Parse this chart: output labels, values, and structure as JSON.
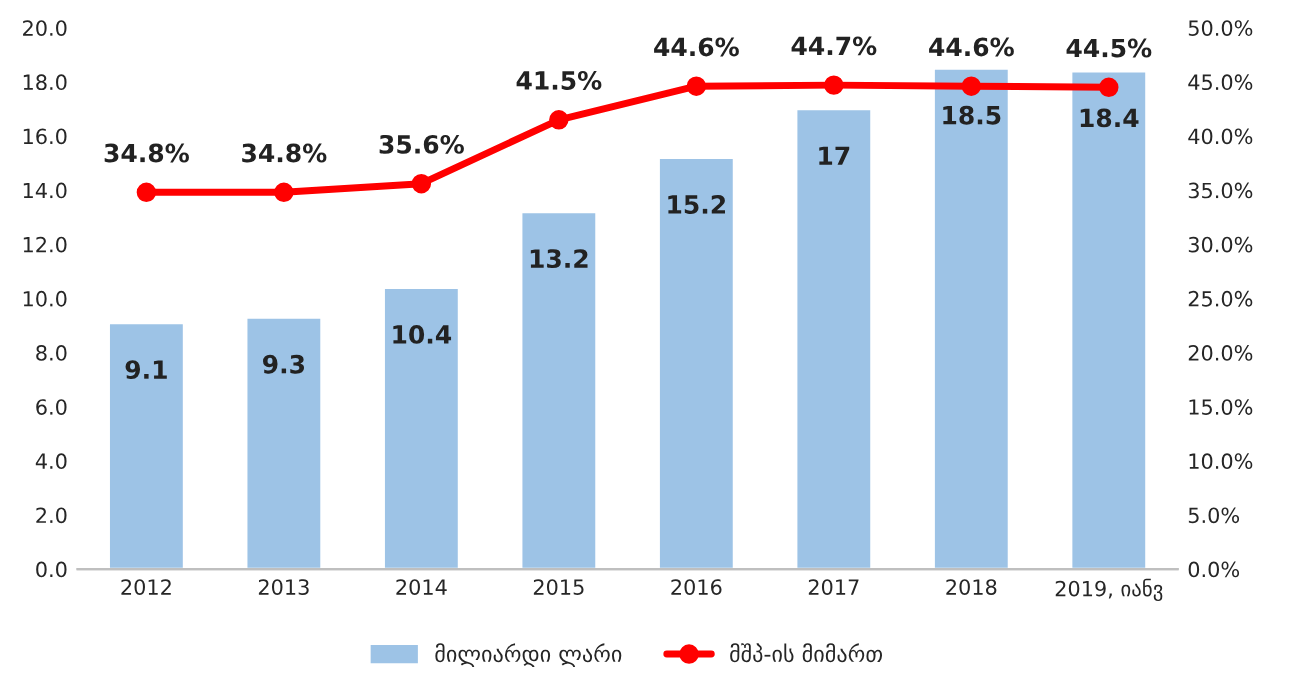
{
  "chart_data": {
    "type": "bar",
    "categories": [
      "2012",
      "2013",
      "2014",
      "2015",
      "2016",
      "2017",
      "2018",
      "2019, იანვ"
    ],
    "series": [
      {
        "name": "მილიარდი ლარი",
        "color": "#9dc3e6",
        "values": [
          9.1,
          9.3,
          10.4,
          13.2,
          15.2,
          17,
          18.5,
          18.4
        ],
        "value_labels": [
          "9.1",
          "9.3",
          "10.4",
          "13.2",
          "15.2",
          "17",
          "18.5",
          "18.4"
        ]
      },
      {
        "name": "მშპ-ის მიმართ",
        "type": "line",
        "axis": "y2",
        "color": "#ff0000",
        "marker": "circle",
        "values": [
          34.8,
          34.8,
          35.6,
          41.5,
          44.6,
          44.7,
          44.6,
          44.5
        ],
        "value_labels": [
          "34.8%",
          "34.8%",
          "35.6%",
          "41.5%",
          "44.6%",
          "44.7%",
          "44.6%",
          "44.5%"
        ]
      }
    ],
    "ylim": [
      0,
      20
    ],
    "yticks": [
      {
        "value": 0,
        "label": "0.0"
      },
      {
        "value": 2,
        "label": "2.0"
      },
      {
        "value": 4,
        "label": "4.0"
      },
      {
        "value": 6,
        "label": "6.0"
      },
      {
        "value": 8,
        "label": "8.0"
      },
      {
        "value": 10,
        "label": "10.0"
      },
      {
        "value": 12,
        "label": "12.0"
      },
      {
        "value": 14,
        "label": "14.0"
      },
      {
        "value": 16,
        "label": "16.0"
      },
      {
        "value": 18,
        "label": "18.0"
      },
      {
        "value": 20,
        "label": "20.0"
      }
    ],
    "y2lim": [
      0,
      50
    ],
    "y2ticks": [
      {
        "value": 0,
        "label": "0.0%"
      },
      {
        "value": 5,
        "label": "5.0%"
      },
      {
        "value": 10,
        "label": "10.0%"
      },
      {
        "value": 15,
        "label": "15.0%"
      },
      {
        "value": 20,
        "label": "20.0%"
      },
      {
        "value": 25,
        "label": "25.0%"
      },
      {
        "value": 30,
        "label": "30.0%"
      },
      {
        "value": 35,
        "label": "35.0%"
      },
      {
        "value": 40,
        "label": "40.0%"
      },
      {
        "value": 45,
        "label": "45.0%"
      },
      {
        "value": 50,
        "label": "50.0%"
      }
    ],
    "grid": false,
    "legend": "bottom"
  }
}
